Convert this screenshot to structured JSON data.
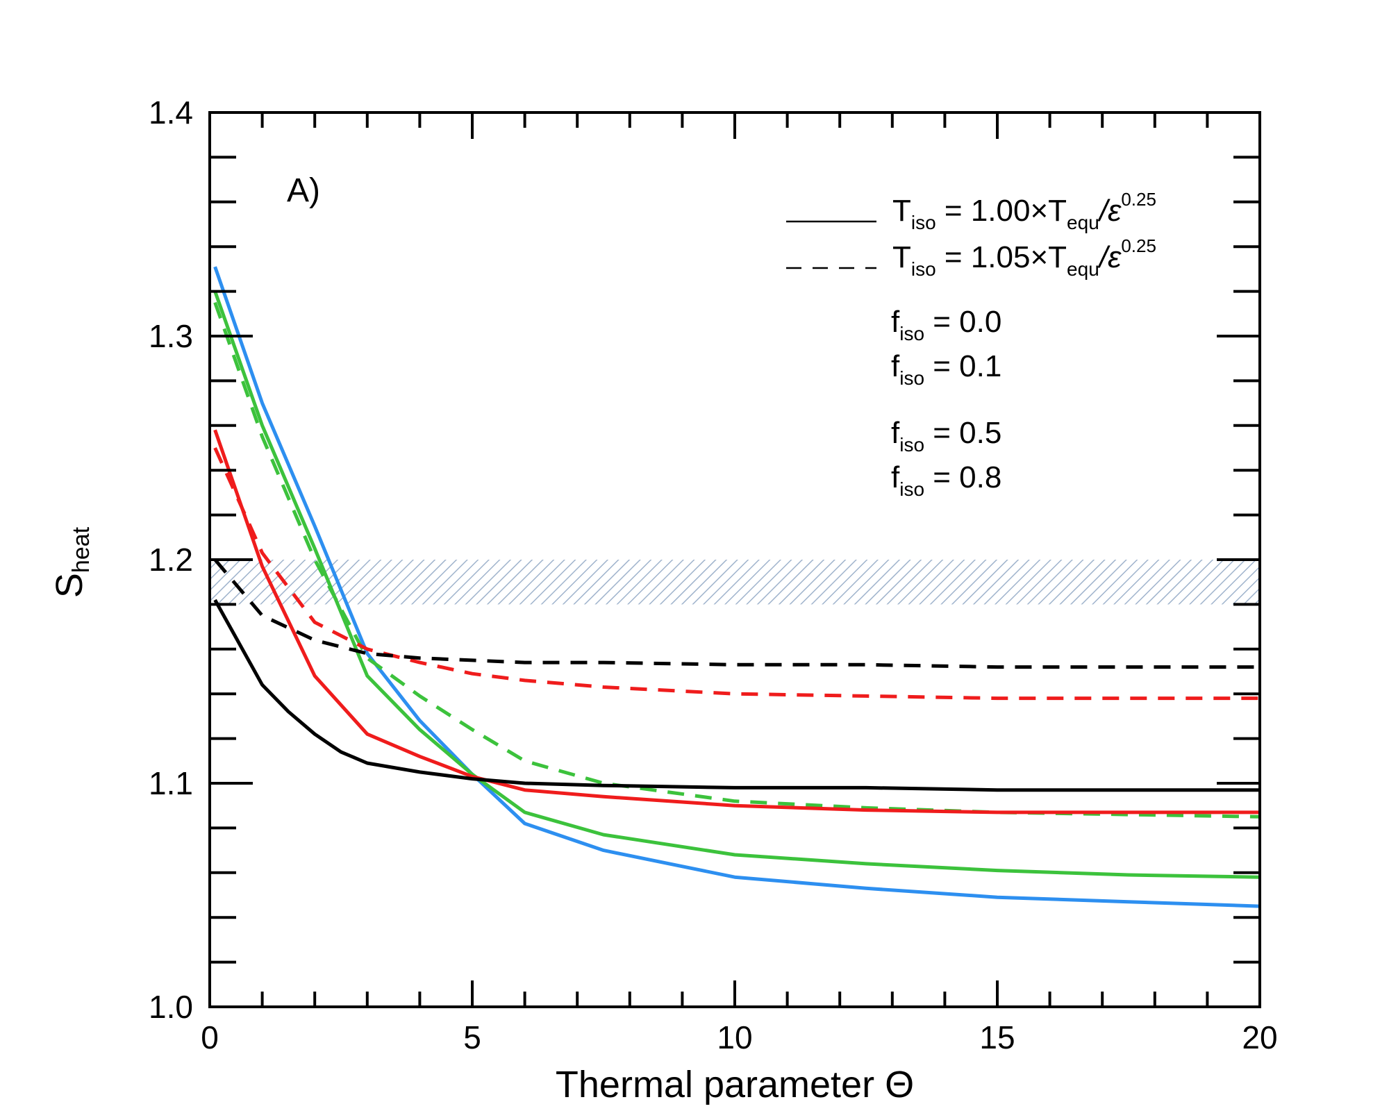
{
  "chart_data": {
    "type": "line",
    "panel_label": "A)",
    "xlabel": "Thermal parameter Θ",
    "ylabel": {
      "main": "S",
      "sub": "heat"
    },
    "xlim": [
      0,
      20
    ],
    "ylim": [
      1.0,
      1.4
    ],
    "x_ticks": [
      0,
      5,
      10,
      15,
      20
    ],
    "x_tick_labels": [
      "0",
      "5",
      "10",
      "15",
      "20"
    ],
    "y_ticks": [
      1.0,
      1.1,
      1.2,
      1.3,
      1.4
    ],
    "y_tick_labels": [
      "1.0",
      "1.1",
      "1.2",
      "1.3",
      "1.4"
    ],
    "shaded_band": {
      "y_range": [
        1.18,
        1.2
      ],
      "pattern": "hatched",
      "color": "#9fb3cc"
    },
    "line_style_legend": [
      {
        "style": "solid",
        "label": {
          "T": "T",
          "iso": "iso",
          "rest": " = 1.00×T",
          "equ": "equ",
          "slash_eps": "/ε",
          "power": "0.25"
        }
      },
      {
        "style": "dashed",
        "label": {
          "T": "T",
          "iso": "iso",
          "rest": " = 1.05×T",
          "equ": "equ",
          "slash_eps": "/ε",
          "power": "0.25"
        }
      }
    ],
    "color_legend": [
      {
        "f": "f",
        "sub": "iso",
        "value": " = 0.0",
        "color": "#2d8ff0"
      },
      {
        "f": "f",
        "sub": "iso",
        "value": " = 0.1",
        "color": "#3cc23c"
      },
      {
        "f": "f",
        "sub": "iso",
        "value": " = 0.5",
        "color": "#ef1c1c"
      },
      {
        "f": "f",
        "sub": "iso",
        "value": " = 0.8",
        "color": "#000000"
      }
    ],
    "series": [
      {
        "name": "f_iso=0.0 solid",
        "color": "#2d8ff0",
        "style": "solid",
        "x": [
          0.1,
          1,
          2,
          3,
          4,
          5,
          6,
          7.5,
          10,
          12.5,
          15,
          17.5,
          20
        ],
        "y": [
          1.331,
          1.27,
          1.215,
          1.158,
          1.128,
          1.104,
          1.082,
          1.07,
          1.058,
          1.053,
          1.049,
          1.047,
          1.045
        ]
      },
      {
        "name": "f_iso=0.1 solid",
        "color": "#3cc23c",
        "style": "solid",
        "x": [
          0.1,
          1,
          2,
          3,
          4,
          5,
          6,
          7.5,
          10,
          12.5,
          15,
          17.5,
          20
        ],
        "y": [
          1.32,
          1.26,
          1.205,
          1.148,
          1.124,
          1.104,
          1.087,
          1.077,
          1.068,
          1.064,
          1.061,
          1.059,
          1.058
        ]
      },
      {
        "name": "f_iso=0.1 dashed",
        "color": "#3cc23c",
        "style": "dashed",
        "x": [
          0.1,
          1,
          2,
          3,
          4,
          5,
          6,
          7.5,
          10,
          12.5,
          15,
          17.5,
          20
        ],
        "y": [
          1.315,
          1.255,
          1.2,
          1.156,
          1.139,
          1.124,
          1.11,
          1.1,
          1.092,
          1.089,
          1.087,
          1.086,
          1.085
        ]
      },
      {
        "name": "f_iso=0.5 solid",
        "color": "#ef1c1c",
        "style": "solid",
        "x": [
          0.1,
          1,
          2,
          3,
          4,
          5,
          6,
          7.5,
          10,
          12.5,
          15,
          17.5,
          20
        ],
        "y": [
          1.258,
          1.197,
          1.148,
          1.122,
          1.112,
          1.103,
          1.097,
          1.094,
          1.09,
          1.088,
          1.087,
          1.087,
          1.087
        ]
      },
      {
        "name": "f_iso=0.5 dashed",
        "color": "#ef1c1c",
        "style": "dashed",
        "x": [
          0.1,
          1,
          2,
          3,
          4,
          5,
          6,
          7.5,
          10,
          12.5,
          15,
          17.5,
          20
        ],
        "y": [
          1.25,
          1.203,
          1.172,
          1.16,
          1.154,
          1.149,
          1.146,
          1.143,
          1.14,
          1.139,
          1.138,
          1.138,
          1.138
        ]
      },
      {
        "name": "f_iso=0.8 solid",
        "color": "#000000",
        "style": "solid",
        "x": [
          0.1,
          1,
          1.5,
          2,
          2.5,
          3,
          4,
          5,
          6,
          7.5,
          10,
          12.5,
          15,
          17.5,
          20
        ],
        "y": [
          1.182,
          1.144,
          1.132,
          1.122,
          1.114,
          1.109,
          1.105,
          1.102,
          1.1,
          1.099,
          1.098,
          1.098,
          1.097,
          1.097,
          1.097
        ]
      },
      {
        "name": "f_iso=0.8 dashed",
        "color": "#000000",
        "style": "dashed",
        "x": [
          0.1,
          1,
          2,
          3,
          4,
          5,
          6,
          7.5,
          10,
          12.5,
          15,
          17.5,
          20
        ],
        "y": [
          1.2,
          1.175,
          1.164,
          1.158,
          1.156,
          1.155,
          1.154,
          1.154,
          1.153,
          1.153,
          1.152,
          1.152,
          1.152
        ]
      }
    ]
  }
}
